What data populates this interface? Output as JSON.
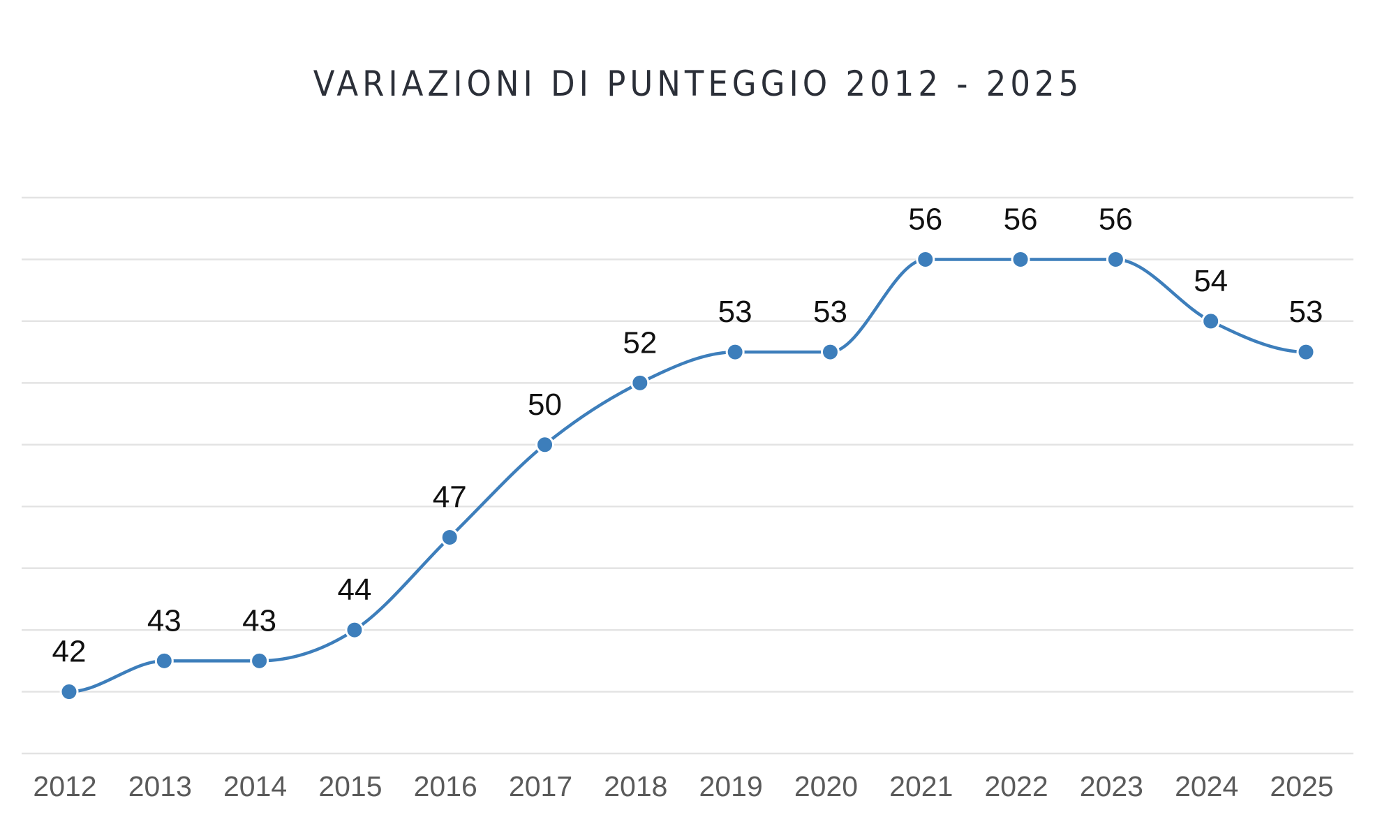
{
  "chart_data": {
    "type": "line",
    "title": "VARIAZIONI DI PUNTEGGIO 2012 - 2025",
    "xlabel": "",
    "ylabel": "",
    "categories": [
      "2012",
      "2013",
      "2014",
      "2015",
      "2016",
      "2017",
      "2018",
      "2019",
      "2020",
      "2021",
      "2022",
      "2023",
      "2024",
      "2025"
    ],
    "series": [
      {
        "values": [
          42,
          43,
          43,
          44,
          47,
          50,
          52,
          53,
          53,
          56,
          56,
          56,
          54,
          53
        ],
        "color": "#3d7ebb"
      }
    ],
    "ylim": [
      40,
      58
    ],
    "grid": true,
    "grid_color": "#e3e3e3",
    "data_labels": true,
    "smooth": true,
    "legend": "none"
  }
}
